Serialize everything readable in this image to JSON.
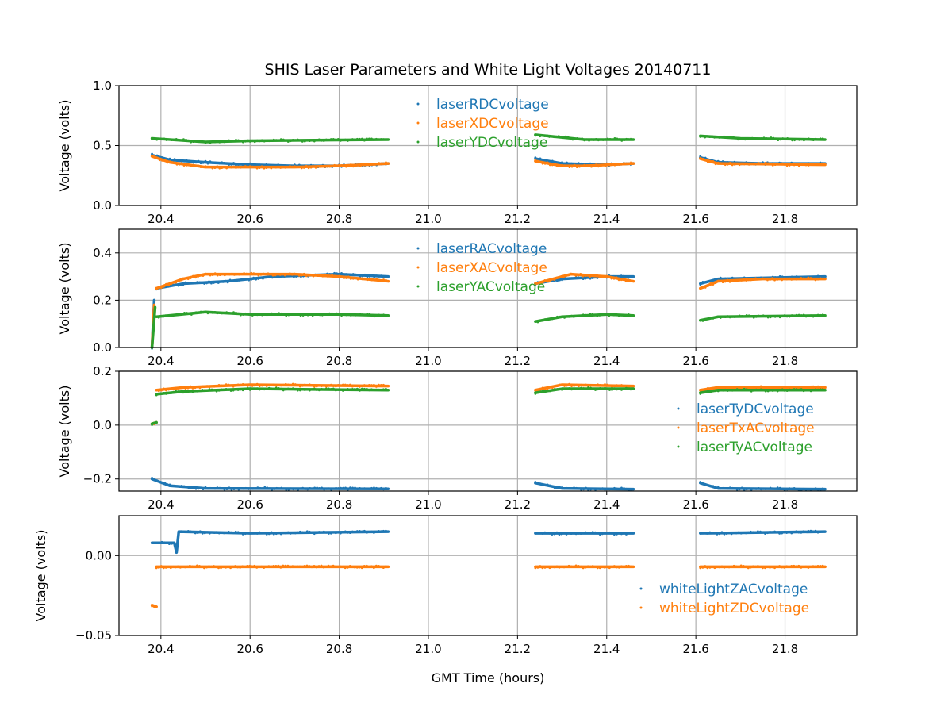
{
  "chart_data": {
    "title": "SHIS Laser Parameters and White Light Voltages 20140711",
    "xlabel": "GMT Time (hours)",
    "xlim": [
      20.306,
      21.961
    ],
    "xticks": [
      20.4,
      20.6,
      20.8,
      21.0,
      21.2,
      21.4,
      21.6,
      21.8
    ],
    "xtick_labels": [
      "20.4",
      "20.6",
      "20.8",
      "21.0",
      "21.2",
      "21.4",
      "21.6",
      "21.8"
    ],
    "grid": true,
    "panels": [
      {
        "type": "scatter",
        "ylabel": "Voltage (volts)",
        "ylim": [
          0,
          1
        ],
        "yticks": [
          0,
          0.5,
          1.0
        ],
        "ytick_labels": [
          "0.0",
          "0.5",
          "1.0"
        ],
        "legend": "top-center",
        "series": [
          {
            "name": "laserRDCvoltage",
            "color": "#1f77b4",
            "segments": [
              [
                [
                  20.38,
                  0.42
                ],
                [
                  20.42,
                  0.38
                ],
                [
                  20.5,
                  0.36
                ],
                [
                  20.6,
                  0.34
                ],
                [
                  20.7,
                  0.33
                ],
                [
                  20.8,
                  0.33
                ],
                [
                  20.91,
                  0.35
                ]
              ],
              [
                [
                  21.24,
                  0.39
                ],
                [
                  21.3,
                  0.35
                ],
                [
                  21.4,
                  0.34
                ],
                [
                  21.46,
                  0.35
                ]
              ],
              [
                [
                  21.61,
                  0.4
                ],
                [
                  21.65,
                  0.36
                ],
                [
                  21.75,
                  0.35
                ],
                [
                  21.89,
                  0.35
                ]
              ]
            ]
          },
          {
            "name": "laserXDCvoltage",
            "color": "#ff7f0e",
            "segments": [
              [
                [
                  20.38,
                  0.41
                ],
                [
                  20.42,
                  0.36
                ],
                [
                  20.5,
                  0.32
                ],
                [
                  20.6,
                  0.32
                ],
                [
                  20.7,
                  0.32
                ],
                [
                  20.8,
                  0.33
                ],
                [
                  20.91,
                  0.35
                ]
              ],
              [
                [
                  21.24,
                  0.37
                ],
                [
                  21.3,
                  0.33
                ],
                [
                  21.35,
                  0.33
                ],
                [
                  21.46,
                  0.35
                ]
              ],
              [
                [
                  21.61,
                  0.39
                ],
                [
                  21.65,
                  0.35
                ],
                [
                  21.89,
                  0.34
                ]
              ]
            ]
          },
          {
            "name": "laserYDCvoltage",
            "color": "#2ca02c",
            "segments": [
              [
                [
                  20.38,
                  0.56
                ],
                [
                  20.5,
                  0.53
                ],
                [
                  20.6,
                  0.54
                ],
                [
                  20.91,
                  0.55
                ]
              ],
              [
                [
                  21.24,
                  0.59
                ],
                [
                  21.35,
                  0.55
                ],
                [
                  21.46,
                  0.55
                ]
              ],
              [
                [
                  21.61,
                  0.58
                ],
                [
                  21.7,
                  0.56
                ],
                [
                  21.89,
                  0.55
                ]
              ]
            ]
          }
        ]
      },
      {
        "type": "scatter",
        "ylabel": "Voltage (volts)",
        "ylim": [
          0,
          0.5
        ],
        "yticks": [
          0,
          0.2,
          0.4
        ],
        "ytick_labels": [
          "0.0",
          "0.2",
          "0.4"
        ],
        "legend": "top-center",
        "series": [
          {
            "name": "laserRACvoltage",
            "color": "#1f77b4",
            "segments": [
              [
                [
                  20.38,
                  0.0
                ],
                [
                  20.385,
                  0.2
                ]
              ],
              [
                [
                  20.39,
                  0.25
                ],
                [
                  20.45,
                  0.27
                ],
                [
                  20.55,
                  0.28
                ],
                [
                  20.65,
                  0.3
                ],
                [
                  20.8,
                  0.31
                ],
                [
                  20.91,
                  0.3
                ]
              ],
              [
                [
                  21.24,
                  0.27
                ],
                [
                  21.3,
                  0.29
                ],
                [
                  21.4,
                  0.3
                ],
                [
                  21.46,
                  0.3
                ]
              ],
              [
                [
                  21.61,
                  0.27
                ],
                [
                  21.65,
                  0.29
                ],
                [
                  21.89,
                  0.3
                ]
              ]
            ]
          },
          {
            "name": "laserXACvoltage",
            "color": "#ff7f0e",
            "segments": [
              [
                [
                  20.38,
                  0.0
                ],
                [
                  20.385,
                  0.18
                ]
              ],
              [
                [
                  20.39,
                  0.25
                ],
                [
                  20.45,
                  0.29
                ],
                [
                  20.5,
                  0.31
                ],
                [
                  20.7,
                  0.31
                ],
                [
                  20.8,
                  0.3
                ],
                [
                  20.91,
                  0.28
                ]
              ],
              [
                [
                  21.24,
                  0.27
                ],
                [
                  21.32,
                  0.31
                ],
                [
                  21.4,
                  0.3
                ],
                [
                  21.46,
                  0.28
                ]
              ],
              [
                [
                  21.61,
                  0.25
                ],
                [
                  21.65,
                  0.28
                ],
                [
                  21.75,
                  0.29
                ],
                [
                  21.89,
                  0.29
                ]
              ]
            ]
          },
          {
            "name": "laserYACvoltage",
            "color": "#2ca02c",
            "segments": [
              [
                [
                  20.38,
                  0.0
                ],
                [
                  20.387,
                  0.17
                ]
              ],
              [
                [
                  20.39,
                  0.13
                ],
                [
                  20.5,
                  0.15
                ],
                [
                  20.6,
                  0.14
                ],
                [
                  20.8,
                  0.14
                ],
                [
                  20.91,
                  0.135
                ]
              ],
              [
                [
                  21.24,
                  0.11
                ],
                [
                  21.3,
                  0.13
                ],
                [
                  21.4,
                  0.14
                ],
                [
                  21.46,
                  0.135
                ]
              ],
              [
                [
                  21.61,
                  0.115
                ],
                [
                  21.65,
                  0.13
                ],
                [
                  21.89,
                  0.135
                ]
              ]
            ]
          }
        ]
      },
      {
        "type": "scatter",
        "ylabel": "Voltage (volts)",
        "ylim": [
          -0.245,
          0.2
        ],
        "yticks": [
          -0.2,
          0.0,
          0.2
        ],
        "ytick_labels": [
          "−0.2",
          "0.0",
          "0.2"
        ],
        "legend": "center-right",
        "series": [
          {
            "name": "laserTyDCvoltage",
            "color": "#1f77b4",
            "segments": [
              [
                [
                  20.38,
                  -0.2
                ],
                [
                  20.42,
                  -0.225
                ],
                [
                  20.5,
                  -0.235
                ],
                [
                  20.91,
                  -0.237
                ]
              ],
              [
                [
                  21.24,
                  -0.215
                ],
                [
                  21.3,
                  -0.235
                ],
                [
                  21.46,
                  -0.238
                ]
              ],
              [
                [
                  21.61,
                  -0.215
                ],
                [
                  21.65,
                  -0.235
                ],
                [
                  21.89,
                  -0.238
                ]
              ]
            ]
          },
          {
            "name": "laserTxACvoltage",
            "color": "#ff7f0e",
            "segments": [
              [
                [
                  20.38,
                  0.005
                ],
                [
                  20.39,
                  0.01
                ]
              ],
              [
                [
                  20.39,
                  0.13
                ],
                [
                  20.45,
                  0.14
                ],
                [
                  20.6,
                  0.15
                ],
                [
                  20.91,
                  0.145
                ]
              ],
              [
                [
                  21.24,
                  0.13
                ],
                [
                  21.3,
                  0.15
                ],
                [
                  21.46,
                  0.145
                ]
              ],
              [
                [
                  21.61,
                  0.13
                ],
                [
                  21.65,
                  0.14
                ],
                [
                  21.89,
                  0.14
                ]
              ]
            ]
          },
          {
            "name": "laserTyACvoltage",
            "color": "#2ca02c",
            "segments": [
              [
                [
                  20.38,
                  0.005
                ],
                [
                  20.39,
                  0.01
                ]
              ],
              [
                [
                  20.39,
                  0.115
                ],
                [
                  20.45,
                  0.125
                ],
                [
                  20.6,
                  0.135
                ],
                [
                  20.91,
                  0.13
                ]
              ],
              [
                [
                  21.24,
                  0.12
                ],
                [
                  21.3,
                  0.135
                ],
                [
                  21.46,
                  0.135
                ]
              ],
              [
                [
                  21.61,
                  0.12
                ],
                [
                  21.65,
                  0.13
                ],
                [
                  21.89,
                  0.13
                ]
              ]
            ]
          }
        ]
      },
      {
        "type": "scatter",
        "ylabel": "Voltage (volts)",
        "ylim": [
          -0.05,
          0.025
        ],
        "yticks": [
          -0.05,
          0.0
        ],
        "ytick_labels": [
          "−0.05",
          "0.00"
        ],
        "legend": "lower-right",
        "series": [
          {
            "name": "whiteLightZACvoltage",
            "color": "#1f77b4",
            "segments": [
              [
                [
                  20.38,
                  0.008
                ],
                [
                  20.43,
                  0.008
                ],
                [
                  20.435,
                  0.002
                ],
                [
                  20.44,
                  0.015
                ],
                [
                  20.6,
                  0.014
                ],
                [
                  20.91,
                  0.015
                ]
              ],
              [
                [
                  21.24,
                  0.014
                ],
                [
                  21.46,
                  0.014
                ]
              ],
              [
                [
                  21.61,
                  0.014
                ],
                [
                  21.89,
                  0.015
                ]
              ]
            ]
          },
          {
            "name": "whiteLightZDCvoltage",
            "color": "#ff7f0e",
            "segments": [
              [
                [
                  20.38,
                  -0.031
                ],
                [
                  20.39,
                  -0.032
                ]
              ],
              [
                [
                  20.39,
                  -0.007
                ],
                [
                  20.91,
                  -0.007
                ]
              ],
              [
                [
                  21.24,
                  -0.007
                ],
                [
                  21.46,
                  -0.007
                ]
              ],
              [
                [
                  21.61,
                  -0.007
                ],
                [
                  21.89,
                  -0.007
                ]
              ]
            ]
          }
        ]
      }
    ]
  }
}
